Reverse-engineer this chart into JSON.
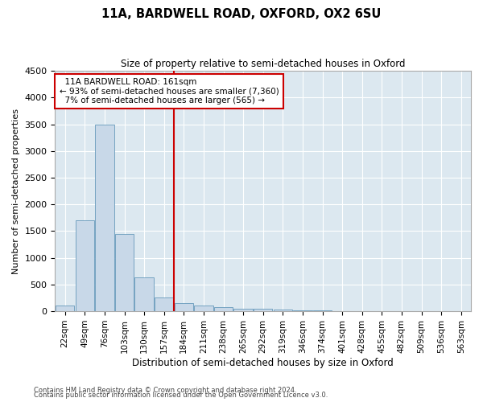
{
  "title1": "11A, BARDWELL ROAD, OXFORD, OX2 6SU",
  "title2": "Size of property relative to semi-detached houses in Oxford",
  "xlabel": "Distribution of semi-detached houses by size in Oxford",
  "ylabel": "Number of semi-detached properties",
  "property_label": "11A BARDWELL ROAD: 161sqm",
  "pct_smaller": 93,
  "count_smaller": 7360,
  "pct_larger": 7,
  "count_larger": 565,
  "categories": [
    "22sqm",
    "49sqm",
    "76sqm",
    "103sqm",
    "130sqm",
    "157sqm",
    "184sqm",
    "211sqm",
    "238sqm",
    "265sqm",
    "292sqm",
    "319sqm",
    "346sqm",
    "374sqm",
    "401sqm",
    "428sqm",
    "455sqm",
    "482sqm",
    "509sqm",
    "536sqm",
    "563sqm"
  ],
  "values": [
    110,
    1700,
    3500,
    1450,
    630,
    250,
    150,
    100,
    70,
    50,
    40,
    30,
    20,
    10,
    5,
    3,
    2,
    2,
    1,
    1,
    1
  ],
  "bar_color": "#c8d8e8",
  "bar_edge_color": "#6699bb",
  "vline_color": "#cc0000",
  "vline_position": 5.5,
  "annotation_box_edge_color": "#cc0000",
  "ylim_max": 4500,
  "yticks": [
    0,
    500,
    1000,
    1500,
    2000,
    2500,
    3000,
    3500,
    4000,
    4500
  ],
  "plot_bg_color": "#dce8f0",
  "grid_color": "#ffffff",
  "footer1": "Contains HM Land Registry data © Crown copyright and database right 2024.",
  "footer2": "Contains public sector information licensed under the Open Government Licence v3.0."
}
